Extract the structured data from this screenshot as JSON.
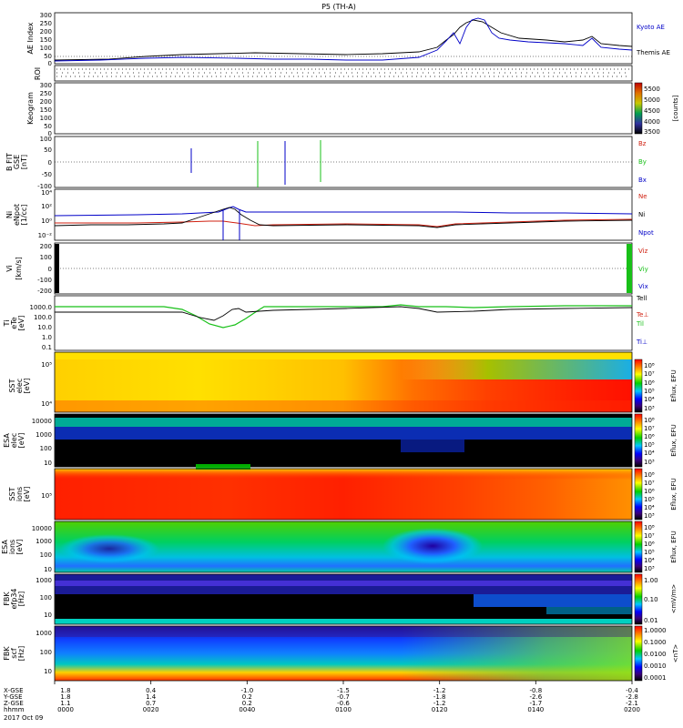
{
  "title": "P5 (TH-A)",
  "chart_data": {
    "type": "line",
    "time_axis": {
      "label": "hhmm",
      "date": "2017 Oct 09",
      "ticks": [
        "0000",
        "0020",
        "0040",
        "0100",
        "0120",
        "0140",
        "0200"
      ]
    },
    "position_rows": [
      {
        "label": "X-GSE",
        "values": [
          "1.8",
          "0.4",
          "-1.0",
          "-1.5",
          "-1.2",
          "-0.8",
          "-0.4"
        ]
      },
      {
        "label": "Y-GSE",
        "values": [
          "1.8",
          "1.4",
          "0.2",
          "-0.7",
          "-1.8",
          "-2.6",
          "-2.8"
        ]
      },
      {
        "label": "Z-GSE",
        "values": [
          "1.1",
          "0.7",
          "0.2",
          "-0.6",
          "-1.2",
          "-1.7",
          "-2.1"
        ]
      }
    ],
    "panels": [
      {
        "id": "ae",
        "ylabel": "AE Index",
        "yticks": [
          "300",
          "250",
          "200",
          "150",
          "100",
          "50",
          "0"
        ],
        "ylim": [
          0,
          300
        ],
        "legend": [
          {
            "name": "Kyoto AE",
            "color": "#0000c8"
          },
          {
            "name": "Themis AE",
            "color": "#000000"
          }
        ]
      },
      {
        "id": "roi",
        "ylabel": "ROI"
      },
      {
        "id": "keogram",
        "ylabel": "Keogram",
        "yticks": [
          "300",
          "250",
          "200",
          "150",
          "100",
          "50",
          "0"
        ],
        "colorbar": {
          "label": "[counts]",
          "ticks": [
            "5500",
            "5000",
            "4500",
            "4000",
            "3500"
          ]
        }
      },
      {
        "id": "bfield",
        "ylabel": "B FIT",
        "ylabel2": "GSE",
        "unit": "[nT]",
        "yticks": [
          "100",
          "50",
          "0",
          "-50",
          "-100"
        ],
        "ylim": [
          -100,
          100
        ],
        "legend": [
          {
            "name": "Bz",
            "color": "#d02010"
          },
          {
            "name": "By",
            "color": "#18c018"
          },
          {
            "name": "Bx",
            "color": "#0000c8"
          }
        ]
      },
      {
        "id": "density",
        "ylabel": "Ni",
        "ylabel2": "eNpot",
        "unit": "[1/cc]",
        "yticks": [
          "10⁴",
          "10²",
          "10⁰",
          "10⁻²"
        ],
        "legend": [
          {
            "name": "Ne",
            "color": "#d02010"
          },
          {
            "name": "Ni",
            "color": "#000000"
          },
          {
            "name": "Npot",
            "color": "#0000c8"
          }
        ]
      },
      {
        "id": "velocity",
        "ylabel": "Vi",
        "unit": "[km/s]",
        "yticks": [
          "200",
          "100",
          "0",
          "-100",
          "-200"
        ],
        "ylim": [
          -250,
          250
        ],
        "legend": [
          {
            "name": "Viz",
            "color": "#d02010"
          },
          {
            "name": "Viy",
            "color": "#18c018"
          },
          {
            "name": "Vix",
            "color": "#0000c8"
          }
        ]
      },
      {
        "id": "temperature",
        "ylabel": "Ti",
        "ylabel2": "eTe",
        "unit": "[eV]",
        "yticks": [
          "1000.0",
          "100.0",
          "10.0",
          "1.0",
          "0.1"
        ],
        "legend": [
          {
            "name": "Tell",
            "color": "#000000"
          },
          {
            "name": "Te⊥",
            "color": "#d02010"
          },
          {
            "name": "Til",
            "color": "#18c018"
          },
          {
            "name": "Ti⊥",
            "color": "#0000c8"
          }
        ]
      },
      {
        "id": "sst_e",
        "ylabel": "SST",
        "ylabel2": "elec",
        "unit": "[eV]",
        "yticks": [
          "10⁴",
          "10⁵"
        ],
        "colorbar": {
          "label": "Eflux, EFU",
          "ticks": [
            "10⁸",
            "10⁷",
            "10⁶",
            "10⁵",
            "10⁴",
            "10³"
          ]
        }
      },
      {
        "id": "esa_e",
        "ylabel": "ESA",
        "ylabel2": "elec",
        "unit": "[eV]",
        "yticks": [
          "10000",
          "1000",
          "100",
          "10"
        ],
        "colorbar": {
          "label": "Eflux, EFU",
          "ticks": [
            "10⁸",
            "10⁷",
            "10⁶",
            "10⁵",
            "10⁴",
            "10³"
          ]
        }
      },
      {
        "id": "sst_i",
        "ylabel": "SST",
        "ylabel2": "ions",
        "unit": "[eV]",
        "yticks": [
          "10⁵"
        ],
        "colorbar": {
          "label": "Eflux, EFU",
          "ticks": [
            "10⁸",
            "10⁷",
            "10⁶",
            "10⁵",
            "10⁴",
            "10³"
          ]
        }
      },
      {
        "id": "esa_i",
        "ylabel": "ESA",
        "ylabel2": "ions",
        "unit": "[eV]",
        "yticks": [
          "10000",
          "1000",
          "100",
          "10"
        ],
        "colorbar": {
          "label": "Eflux, EFU",
          "ticks": [
            "10⁸",
            "10⁷",
            "10⁶",
            "10⁵",
            "10⁴",
            "10³"
          ]
        }
      },
      {
        "id": "fbk_e",
        "ylabel": "FBK",
        "ylabel2": "efp34",
        "unit": "[Hz]",
        "yticks": [
          "1000",
          "100",
          "10"
        ],
        "colorbar": {
          "label": "<mV/m>",
          "ticks": [
            "1.00",
            "0.10",
            "0.01"
          ]
        }
      },
      {
        "id": "fbk_b",
        "ylabel": "FBK",
        "ylabel2": "scf",
        "unit": "[Hz]",
        "yticks": [
          "1000",
          "100",
          "10"
        ],
        "colorbar": {
          "label": "<nT>",
          "ticks": [
            "1.0000",
            "0.1000",
            "0.0100",
            "0.0010",
            "0.0001"
          ]
        }
      }
    ]
  }
}
